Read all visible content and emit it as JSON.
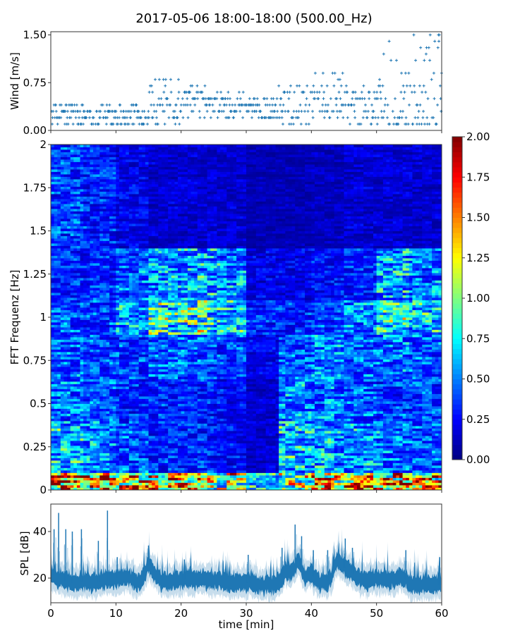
{
  "chart_data": [
    {
      "type": "scatter",
      "id": "wind",
      "title": "2017-05-06 18:00-18:00 (500.00_Hz)",
      "xlabel": "",
      "ylabel": "Wind [m/s]",
      "xlim": [
        0,
        60
      ],
      "ylim": [
        0,
        1.55
      ],
      "yticks": [
        "0.00",
        "0.75",
        "1.50"
      ],
      "marker": "+",
      "color": "#1f77b4",
      "bins_minutes": [
        0,
        5,
        10,
        15,
        20,
        25,
        30,
        35,
        40,
        45,
        50,
        55
      ],
      "wind_level_range_per_bin": [
        [
          0.1,
          0.4
        ],
        [
          0.1,
          0.4
        ],
        [
          0.1,
          0.4
        ],
        [
          0.1,
          0.8
        ],
        [
          0.2,
          0.7
        ],
        [
          0.2,
          0.6
        ],
        [
          0.2,
          0.5
        ],
        [
          0.1,
          0.8
        ],
        [
          0.2,
          0.9
        ],
        [
          0.1,
          0.7
        ],
        [
          0.1,
          1.5
        ],
        [
          0.1,
          1.5
        ]
      ],
      "level_step": 0.1
    },
    {
      "type": "heatmap",
      "id": "spectrogram",
      "ylabel": "FFT Frequenz [Hz]",
      "xlim": [
        0,
        60
      ],
      "ylim": [
        0,
        2
      ],
      "yticks": [
        "0",
        "0.25",
        "0.5",
        "0.75",
        "1",
        "1.25",
        "1.5",
        "1.75",
        "2"
      ],
      "colormap": "jet",
      "colorbar": {
        "range": [
          0,
          2
        ],
        "ticks": [
          "0.00",
          "0.25",
          "0.50",
          "0.75",
          "1.00",
          "1.25",
          "1.50",
          "1.75",
          "2.00"
        ]
      },
      "time_bins_minutes": [
        0,
        5,
        10,
        15,
        20,
        25,
        30,
        35,
        40,
        45,
        50,
        55
      ],
      "freq_bands_hz": [
        [
          0,
          0.1
        ],
        [
          0.1,
          0.4
        ],
        [
          0.4,
          0.65
        ],
        [
          0.65,
          0.9
        ],
        [
          0.9,
          1.1
        ],
        [
          1.1,
          1.4
        ],
        [
          1.4,
          2
        ]
      ],
      "mean_values": [
        [
          1.5,
          0.6,
          0.45,
          0.45,
          0.4,
          0.3,
          0.35
        ],
        [
          1.4,
          0.5,
          0.4,
          0.35,
          0.35,
          0.3,
          0.3
        ],
        [
          1.2,
          0.4,
          0.3,
          0.35,
          0.55,
          0.45,
          0.2
        ],
        [
          1.3,
          0.3,
          0.3,
          0.4,
          0.75,
          0.5,
          0.15
        ],
        [
          1.2,
          0.3,
          0.3,
          0.4,
          0.8,
          0.55,
          0.15
        ],
        [
          1.0,
          0.25,
          0.25,
          0.35,
          0.6,
          0.5,
          0.15
        ],
        [
          0.6,
          0.15,
          0.15,
          0.2,
          0.3,
          0.2,
          0.1
        ],
        [
          1.0,
          0.6,
          0.5,
          0.4,
          0.3,
          0.2,
          0.1
        ],
        [
          1.3,
          0.55,
          0.45,
          0.45,
          0.35,
          0.25,
          0.12
        ],
        [
          1.4,
          0.5,
          0.4,
          0.4,
          0.5,
          0.3,
          0.15
        ],
        [
          1.4,
          0.45,
          0.35,
          0.45,
          0.75,
          0.55,
          0.15
        ],
        [
          1.3,
          0.4,
          0.35,
          0.4,
          0.6,
          0.45,
          0.15
        ]
      ]
    },
    {
      "type": "line",
      "id": "spl",
      "xlabel": "time [min]",
      "ylabel": "SPL [dB]",
      "xlim": [
        0,
        60
      ],
      "ylim": [
        9.4,
        51.8
      ],
      "xticks": [
        "0",
        "10",
        "20",
        "30",
        "40",
        "50",
        "60"
      ],
      "yticks": [
        "20",
        "40"
      ],
      "color": "#1f77b4",
      "median_per_minute": [
        22,
        20,
        19,
        18,
        18,
        19,
        18,
        18,
        19,
        19,
        20,
        20,
        20,
        18,
        19,
        26,
        22,
        19,
        18,
        19,
        19,
        20,
        19,
        20,
        19,
        19,
        19,
        18,
        18,
        18,
        18,
        18,
        17,
        17,
        17,
        18,
        23,
        22,
        28,
        20,
        22,
        18,
        18,
        20,
        28,
        25,
        23,
        20,
        19,
        19,
        20,
        20,
        19,
        20,
        21,
        18,
        17,
        17,
        18,
        17,
        17
      ],
      "spikes": [
        [
          0.5,
          41
        ],
        [
          1.2,
          48
        ],
        [
          2.3,
          41
        ],
        [
          3.3,
          40
        ],
        [
          4.7,
          41
        ],
        [
          7.3,
          36
        ],
        [
          8.7,
          49
        ],
        [
          10.2,
          29
        ],
        [
          15,
          34
        ],
        [
          20.5,
          28
        ],
        [
          30.3,
          30
        ],
        [
          35.5,
          33
        ],
        [
          37.5,
          43
        ],
        [
          38.5,
          38
        ],
        [
          40.3,
          32
        ],
        [
          42.5,
          32
        ],
        [
          45.2,
          37
        ],
        [
          46.3,
          33
        ],
        [
          54.5,
          32
        ],
        [
          59.7,
          29
        ]
      ]
    }
  ]
}
